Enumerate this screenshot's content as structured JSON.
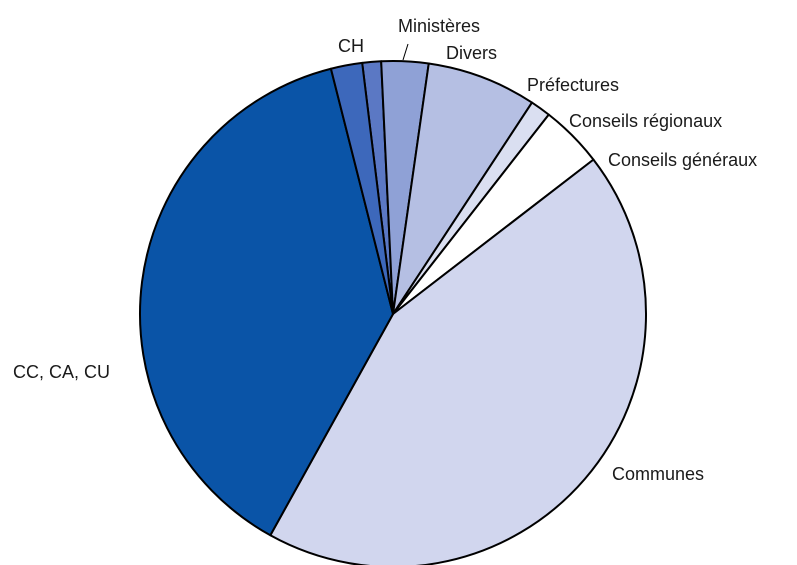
{
  "chart_data": {
    "type": "pie",
    "title": "",
    "start_angle_deg": -7.0,
    "direction": "clockwise",
    "slices": [
      {
        "label": "Ministères",
        "value": 1.2,
        "color": "#5b78c4"
      },
      {
        "label": "Divers",
        "value": 3.0,
        "color": "#8fa1d6"
      },
      {
        "label": "Préfectures",
        "value": 7.0,
        "color": "#b5bfe3"
      },
      {
        "label": "Conseils régionaux",
        "value": 1.3,
        "color": "#dadff1"
      },
      {
        "label": "Conseils généraux",
        "value": 4.0,
        "color": "#ffffff"
      },
      {
        "label": "Communes",
        "value": 43.5,
        "color": "#d1d6ee"
      },
      {
        "label": "CC, CA, CU",
        "value": 38.0,
        "color": "#0a54a7"
      },
      {
        "label": "CH",
        "value": 2.0,
        "color": "#3d68bb"
      }
    ]
  }
}
